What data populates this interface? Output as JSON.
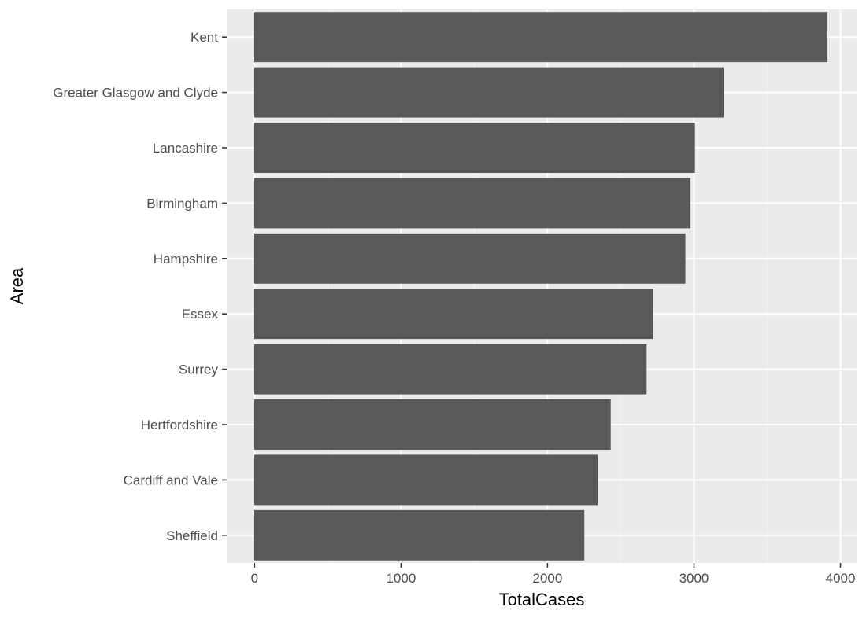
{
  "chart_data": {
    "type": "bar",
    "orientation": "horizontal",
    "title": "",
    "xlabel": "TotalCases",
    "ylabel": "Area",
    "categories": [
      "Kent",
      "Greater Glasgow and Clyde",
      "Lancashire",
      "Birmingham",
      "Hampshire",
      "Essex",
      "Surrey",
      "Hertfordshire",
      "Cardiff and Vale",
      "Sheffield"
    ],
    "values": [
      3910,
      3200,
      3005,
      2975,
      2940,
      2720,
      2675,
      2430,
      2340,
      2250
    ],
    "xlim": [
      -190,
      4110
    ],
    "x_ticks": [
      0,
      1000,
      2000,
      3000,
      4000
    ],
    "x_tick_labels": [
      "0",
      "1000",
      "2000",
      "3000",
      "4000"
    ],
    "grid": true,
    "legend": "none",
    "colors": {
      "panel_background": "#ebebeb",
      "grid_major": "#ffffff",
      "grid_minor": "#f5f5f5",
      "bar_fill": "#595959",
      "tick_label": "#4d4d4d",
      "axis_title": "#000000"
    }
  }
}
